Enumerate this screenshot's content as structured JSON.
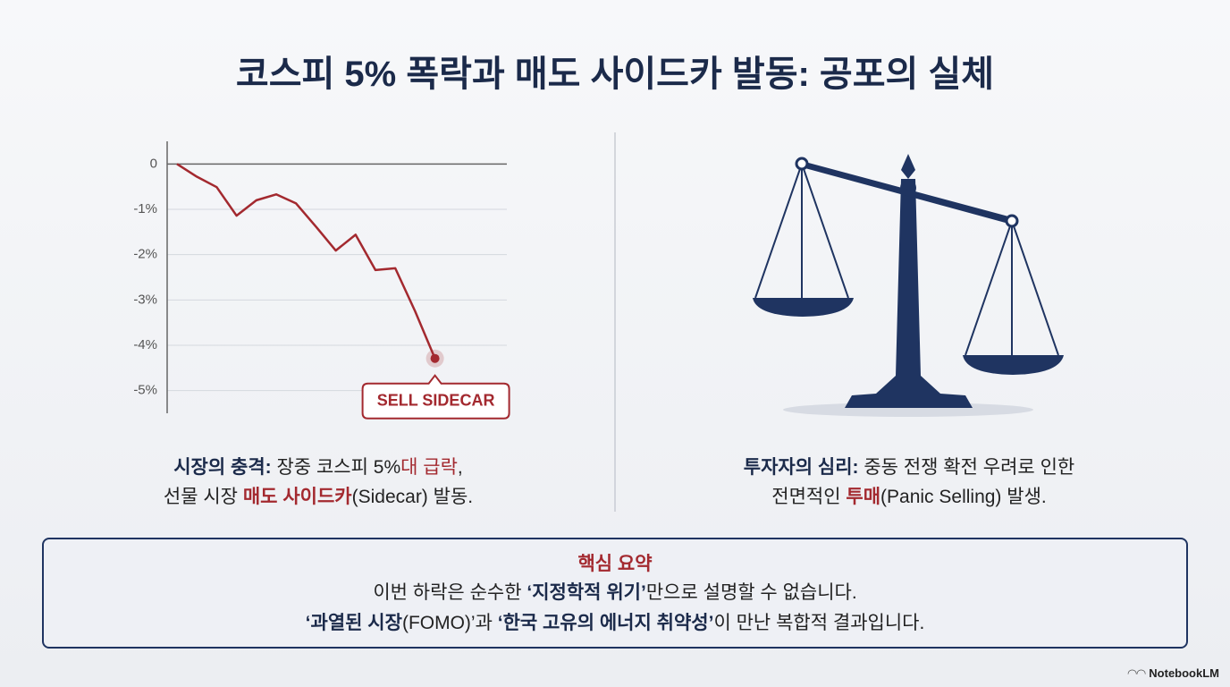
{
  "title": "코스피 5% 폭락과 매도 사이드카 발동: 공포의 실체",
  "chart_data": {
    "type": "line",
    "values": [
      0,
      -0.28,
      -0.51,
      -1.14,
      -0.8,
      -0.67,
      -0.87,
      -1.38,
      -1.91,
      -1.56,
      -2.34,
      -2.3,
      -3.25,
      -4.29
    ],
    "color": "#a3292f",
    "ylim": [
      -5.5,
      0.5
    ],
    "yticks": [
      0,
      {
        "value": -1,
        "label": "-1%"
      },
      {
        "value": -2,
        "label": "-2%"
      },
      {
        "value": -3,
        "label": "-3%"
      },
      {
        "value": -4,
        "label": "-4%"
      },
      {
        "value": -5,
        "label": "-5%"
      }
    ],
    "grid": true,
    "annotation": "SELL SIDECAR"
  },
  "left_caption": [
    [
      {
        "text": "시장의 충격:",
        "style": "bold"
      },
      {
        "text": " 장중 코스피 5%"
      },
      {
        "text": "대 급락",
        "style": "red"
      },
      {
        "text": ","
      }
    ],
    [
      {
        "text": "선물 시장 "
      },
      {
        "text": "매도 사이드카",
        "style": "red-bold"
      },
      {
        "text": "(Sidecar) 발동."
      }
    ]
  ],
  "right_caption": [
    [
      {
        "text": "투자자의 심리:",
        "style": "bold"
      },
      {
        "text": " 중동 전쟁 확전 우려로 인한"
      }
    ],
    [
      {
        "text": "전면적인 "
      },
      {
        "text": "투매",
        "style": "red-bold"
      },
      {
        "text": "(Panic Selling) 발생."
      }
    ]
  ],
  "summary": {
    "heading": "핵심 요약",
    "lines": [
      [
        {
          "text": "이번 하락은 순수한 "
        },
        {
          "text": "‘지정학적 위기’",
          "style": "bold"
        },
        {
          "text": "만으로 설명할 수 없습니다."
        }
      ],
      [
        {
          "text": "‘과열된 시장",
          "style": "bold"
        },
        {
          "text": "(FOMO)’과 "
        },
        {
          "text": "‘한국 고유의 에너지 취약성’",
          "style": "bold"
        },
        {
          "text": "이 만난 복합적 결과입니다."
        }
      ]
    ]
  },
  "brand": "NotebookLM"
}
